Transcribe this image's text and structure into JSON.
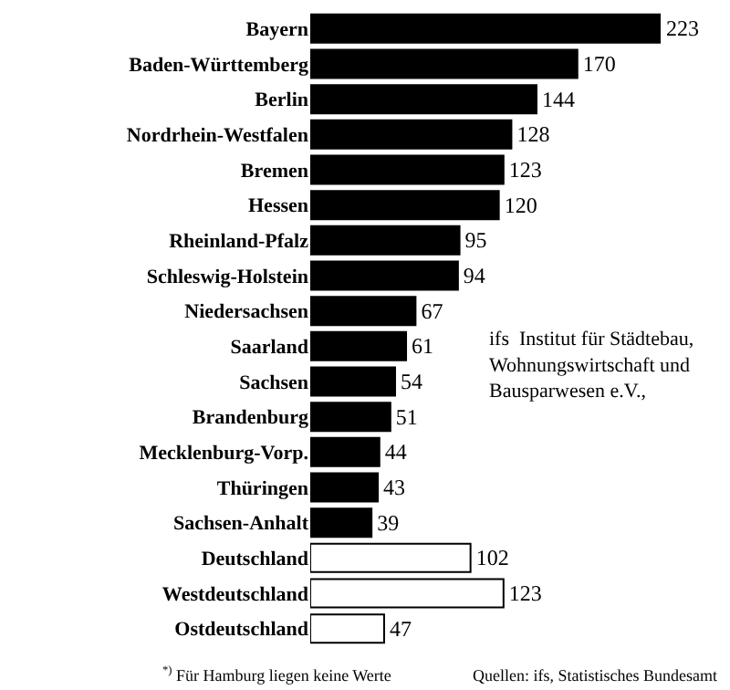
{
  "chart_data": {
    "type": "bar",
    "orientation": "horizontal",
    "data_labels": true,
    "legend": false,
    "categories": [
      "Bayern",
      "Baden-Württemberg",
      "Berlin",
      "Nordrhein-Westfalen",
      "Bremen",
      "Hessen",
      "Rheinland-Pfalz",
      "Schleswig-Holstein",
      "Niedersachsen",
      "Saarland",
      "Sachsen",
      "Brandenburg",
      "Mecklenburg-Vorp.",
      "Thüringen",
      "Sachsen-Anhalt",
      "Deutschland",
      "Westdeutschland",
      "Ostdeutschland"
    ],
    "values": [
      223,
      170,
      144,
      128,
      123,
      120,
      95,
      94,
      67,
      61,
      54,
      51,
      44,
      43,
      39,
      102,
      123,
      47
    ],
    "colors": [
      "#000000",
      "#000000",
      "#000000",
      "#000000",
      "#000000",
      "#000000",
      "#000000",
      "#000000",
      "#000000",
      "#000000",
      "#000000",
      "#000000",
      "#000000",
      "#000000",
      "#000000",
      "#ffffff",
      "#ffffff",
      "#ffffff"
    ],
    "annotations": [
      "ifs  Institut für Städtebau,\nWohnungswirtschaft und\nBausparwesen e.V.,",
      "$^{*)}$ Für Hamburg liegen keine Werte",
      "Quellen: ifs, Statistisches Bundesamt"
    ]
  }
}
